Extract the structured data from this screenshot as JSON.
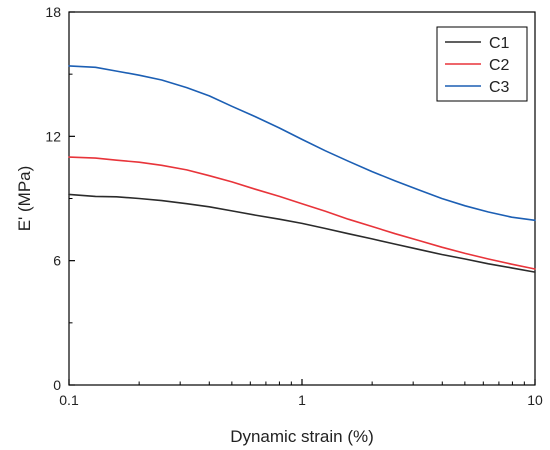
{
  "chart_data": {
    "type": "line",
    "title": "",
    "xlabel": "Dynamic strain (%)",
    "ylabel": "E' (MPa)",
    "x_scale": "log",
    "xlim": [
      0.1,
      10
    ],
    "ylim": [
      0,
      18
    ],
    "x_ticks": [
      0.1,
      1,
      10
    ],
    "x_tick_labels": [
      "0.1",
      "1",
      "10"
    ],
    "y_ticks": [
      0,
      6,
      12,
      18
    ],
    "y_tick_labels": [
      "0",
      "6",
      "12",
      "18"
    ],
    "grid": false,
    "legend_position": "top-right",
    "series": [
      {
        "name": "C1",
        "color": "#2b2b2b",
        "x": [
          0.1,
          0.13,
          0.16,
          0.2,
          0.25,
          0.32,
          0.4,
          0.5,
          0.63,
          0.8,
          1,
          1.26,
          1.58,
          2,
          2.51,
          3.16,
          3.98,
          5.01,
          6.31,
          7.94,
          10
        ],
        "y": [
          9.2,
          9.1,
          9.08,
          9.0,
          8.9,
          8.75,
          8.6,
          8.4,
          8.2,
          8.0,
          7.8,
          7.55,
          7.3,
          7.05,
          6.8,
          6.55,
          6.3,
          6.08,
          5.85,
          5.65,
          5.45
        ]
      },
      {
        "name": "C2",
        "color": "#e8343a",
        "x": [
          0.1,
          0.13,
          0.16,
          0.2,
          0.25,
          0.32,
          0.4,
          0.5,
          0.63,
          0.8,
          1,
          1.26,
          1.58,
          2,
          2.51,
          3.16,
          3.98,
          5.01,
          6.31,
          7.94,
          10
        ],
        "y": [
          11.0,
          10.95,
          10.85,
          10.75,
          10.6,
          10.38,
          10.1,
          9.8,
          9.45,
          9.1,
          8.75,
          8.38,
          8.0,
          7.65,
          7.3,
          6.98,
          6.65,
          6.35,
          6.08,
          5.83,
          5.6
        ]
      },
      {
        "name": "C3",
        "color": "#1c5fb4",
        "x": [
          0.1,
          0.13,
          0.16,
          0.2,
          0.25,
          0.32,
          0.4,
          0.5,
          0.63,
          0.8,
          1,
          1.26,
          1.58,
          2,
          2.51,
          3.16,
          3.98,
          5.01,
          6.31,
          7.94,
          10
        ],
        "y": [
          15.4,
          15.33,
          15.15,
          14.95,
          14.72,
          14.35,
          13.95,
          13.45,
          12.95,
          12.4,
          11.85,
          11.3,
          10.8,
          10.3,
          9.85,
          9.42,
          9.0,
          8.65,
          8.35,
          8.1,
          7.95
        ]
      }
    ]
  }
}
